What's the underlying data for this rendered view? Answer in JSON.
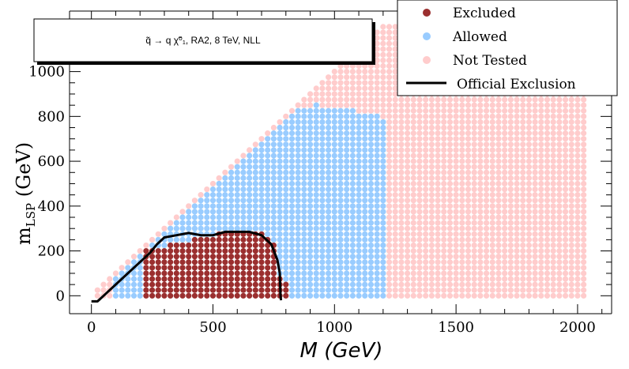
{
  "chart_data": {
    "type": "scatter",
    "title": "q̃ → q χ̃⁰₁, RA2, 8 TeV, NLL",
    "xlabel": "M (GeV)",
    "ylabel": "m",
    "ylabel_sub": "LSP",
    "ylabel_unit": " (GeV)",
    "xlim": [
      -90,
      2140
    ],
    "ylim": [
      -80,
      1270
    ],
    "x_ticks": [
      0,
      500,
      1000,
      1500,
      2000
    ],
    "y_ticks": [
      0,
      200,
      400,
      600,
      800,
      1000
    ],
    "x_tick_labels": [
      "0",
      "500",
      "1000",
      "1500",
      "2000"
    ],
    "y_tick_labels": [
      "0",
      "200",
      "400",
      "600",
      "800",
      "1000"
    ],
    "grid": false,
    "legend_position": "top-right",
    "grid_spacing": 25,
    "regions": {
      "excluded": {
        "name": "Excluded",
        "color": "#9b2f2f",
        "x_range": [
          225,
          800
        ],
        "upper_edge": [
          [
            225,
            200
          ],
          [
            325,
            225
          ],
          [
            425,
            250
          ],
          [
            525,
            275
          ],
          [
            700,
            275
          ],
          [
            750,
            225
          ],
          [
            775,
            75
          ],
          [
            800,
            50
          ]
        ]
      },
      "allowed": {
        "name": "Allowed",
        "color": "#99ccff",
        "x_range": [
          100,
          1200
        ],
        "upper_edge": [
          [
            900,
            825
          ],
          [
            925,
            850
          ],
          [
            950,
            825
          ],
          [
            1075,
            825
          ],
          [
            1100,
            800
          ],
          [
            1175,
            800
          ],
          [
            1200,
            775
          ]
        ]
      },
      "not_tested": {
        "name": "Not Tested",
        "color": "#ffcccc",
        "x_range": [
          25,
          2025
        ],
        "upper_edge": [
          [
            1175,
            1200
          ],
          [
            2025,
            1200
          ]
        ],
        "diagonal_offset": 0
      }
    },
    "official_exclusion": {
      "name": "Official Exclusion",
      "color": "#000000",
      "points": [
        [
          0,
          -25
        ],
        [
          25,
          -25
        ],
        [
          50,
          0
        ],
        [
          100,
          50
        ],
        [
          150,
          100
        ],
        [
          200,
          150
        ],
        [
          240,
          190
        ],
        [
          270,
          230
        ],
        [
          300,
          260
        ],
        [
          350,
          270
        ],
        [
          400,
          280
        ],
        [
          450,
          270
        ],
        [
          500,
          270
        ],
        [
          550,
          285
        ],
        [
          600,
          285
        ],
        [
          650,
          285
        ],
        [
          700,
          270
        ],
        [
          740,
          230
        ],
        [
          765,
          160
        ],
        [
          775,
          100
        ],
        [
          778,
          0
        ],
        [
          780,
          -20
        ]
      ]
    }
  },
  "legend": {
    "excluded": "Excluded",
    "allowed": "Allowed",
    "not_tested": "Not Tested",
    "official_exclusion": "Official Exclusion"
  }
}
